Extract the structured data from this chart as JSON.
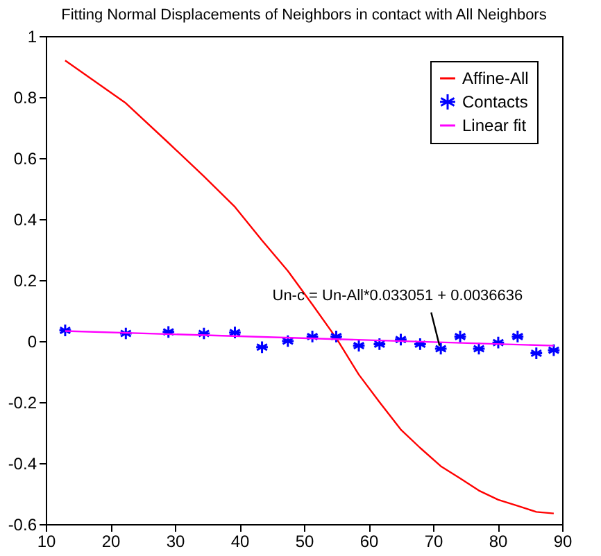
{
  "chart_data": {
    "type": "line",
    "title": "Fitting Normal Displacements of Neighbors in contact with All Neighbors",
    "xlim": [
      10,
      90
    ],
    "xticks": [
      10,
      20,
      30,
      40,
      50,
      60,
      70,
      80,
      90
    ],
    "ylim": [
      -0.6,
      1
    ],
    "yticks": [
      -0.6,
      -0.4,
      -0.2,
      {
        "value": 0,
        "label": "0"
      },
      0.2,
      0.4,
      0.6,
      0.8,
      {
        "value": 1,
        "label": "1"
      }
    ],
    "grid": false,
    "legend": "top right",
    "series": [
      {
        "name": "Affine-All",
        "color": "#ff0000",
        "marker": "none",
        "x": [
          13,
          22.4,
          29,
          34.5,
          39.3,
          43.5,
          47.5,
          51.3,
          55,
          58.5,
          61.7,
          65,
          68,
          71.2,
          74.2,
          77.1,
          80.1,
          83.1,
          86,
          88.7
        ],
        "values": [
          0.92,
          0.78,
          0.65,
          0.54,
          0.44,
          0.33,
          0.23,
          0.12,
          0.01,
          -0.11,
          -0.2,
          -0.29,
          -0.35,
          -0.41,
          -0.45,
          -0.49,
          -0.52,
          -0.54,
          -0.56,
          -0.565
        ]
      },
      {
        "name": "Contacts",
        "type": "scatter",
        "color": "#0000ff",
        "marker": "cross",
        "x": [
          13,
          22.4,
          29,
          34.5,
          39.3,
          43.5,
          47.5,
          51.3,
          55,
          58.5,
          61.7,
          65,
          68,
          71.2,
          74.2,
          77.1,
          80.1,
          83.1,
          86,
          88.7
        ],
        "values": [
          0.035,
          0.025,
          0.03,
          0.025,
          0.028,
          -0.02,
          0,
          0.015,
          0.015,
          -0.015,
          -0.01,
          0.005,
          -0.01,
          -0.025,
          0.015,
          -0.025,
          -0.005,
          0.015,
          -0.04,
          -0.03
        ]
      },
      {
        "name": "Linear fit",
        "color": "#ff00ff",
        "marker": "none",
        "x": [
          13,
          88.7
        ],
        "values": [
          0.033,
          -0.015
        ]
      }
    ],
    "annotations": [
      {
        "text": "Un-c = Un-All*0.033051 + 0.0036636",
        "x": 71,
        "y": -0.015
      }
    ]
  }
}
